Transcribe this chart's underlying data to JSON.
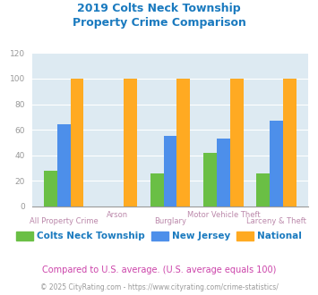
{
  "title": "2019 Colts Neck Township\nProperty Crime Comparison",
  "title_color": "#1a7abf",
  "categories": [
    "All Property Crime",
    "Arson",
    "Burglary",
    "Motor Vehicle Theft",
    "Larceny & Theft"
  ],
  "colts_neck": [
    28,
    0,
    26,
    42,
    26
  ],
  "new_jersey": [
    64,
    0,
    55,
    53,
    67
  ],
  "national": [
    100,
    100,
    100,
    100,
    100
  ],
  "bar_colors": {
    "colts_neck": "#6abf45",
    "new_jersey": "#4d8fea",
    "national": "#ffaa22"
  },
  "ylim": [
    0,
    120
  ],
  "yticks": [
    0,
    20,
    40,
    60,
    80,
    100,
    120
  ],
  "background_color": "#ddeaf2",
  "grid_color": "#ffffff",
  "legend_labels": [
    "Colts Neck Township",
    "New Jersey",
    "National"
  ],
  "footnote1": "Compared to U.S. average. (U.S. average equals 100)",
  "footnote2": "© 2025 CityRating.com - https://www.cityrating.com/crime-statistics/",
  "footnote1_color": "#cc44aa",
  "footnote2_color": "#999999",
  "xlabel_color": "#bb88aa",
  "tick_color": "#999999",
  "legend_text_color": "#1a7abf"
}
